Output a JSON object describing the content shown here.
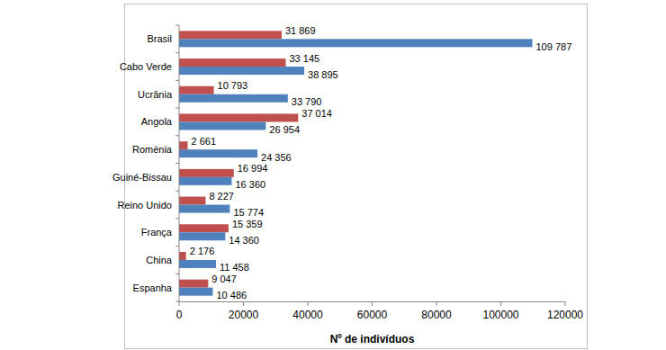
{
  "chart_data": {
    "type": "bar",
    "orientation": "horizontal",
    "x_label": "Nº de indivíduos",
    "categories": [
      "Brasil",
      "Cabo Verde",
      "Ucrânia",
      "Angola",
      "Roménia",
      "Guiné-Bissau",
      "Reino Unido",
      "França",
      "China",
      "Espanha"
    ],
    "series": [
      {
        "color": "#c0504d",
        "values": [
          31869,
          33145,
          10793,
          37014,
          2661,
          16994,
          8227,
          15359,
          2176,
          9047
        ],
        "value_labels": [
          "31 869",
          "33 145",
          "10 793",
          "37 014",
          "2 661",
          "16 994",
          "8 227",
          "15 359",
          "2 176",
          "9 047"
        ]
      },
      {
        "color": "#4f81bd",
        "values": [
          109787,
          38895,
          33790,
          26954,
          24356,
          16360,
          15774,
          14360,
          11458,
          10486
        ],
        "value_labels": [
          "109 787",
          "38 895",
          "33 790",
          "26 954",
          "24 356",
          "16 360",
          "15 774",
          "14 360",
          "11 458",
          "10 486"
        ]
      }
    ],
    "xlim": [
      0,
      120000
    ],
    "xticks": [
      0,
      20000,
      40000,
      60000,
      80000,
      100000,
      120000
    ],
    "grid": false,
    "data_labels": true
  }
}
